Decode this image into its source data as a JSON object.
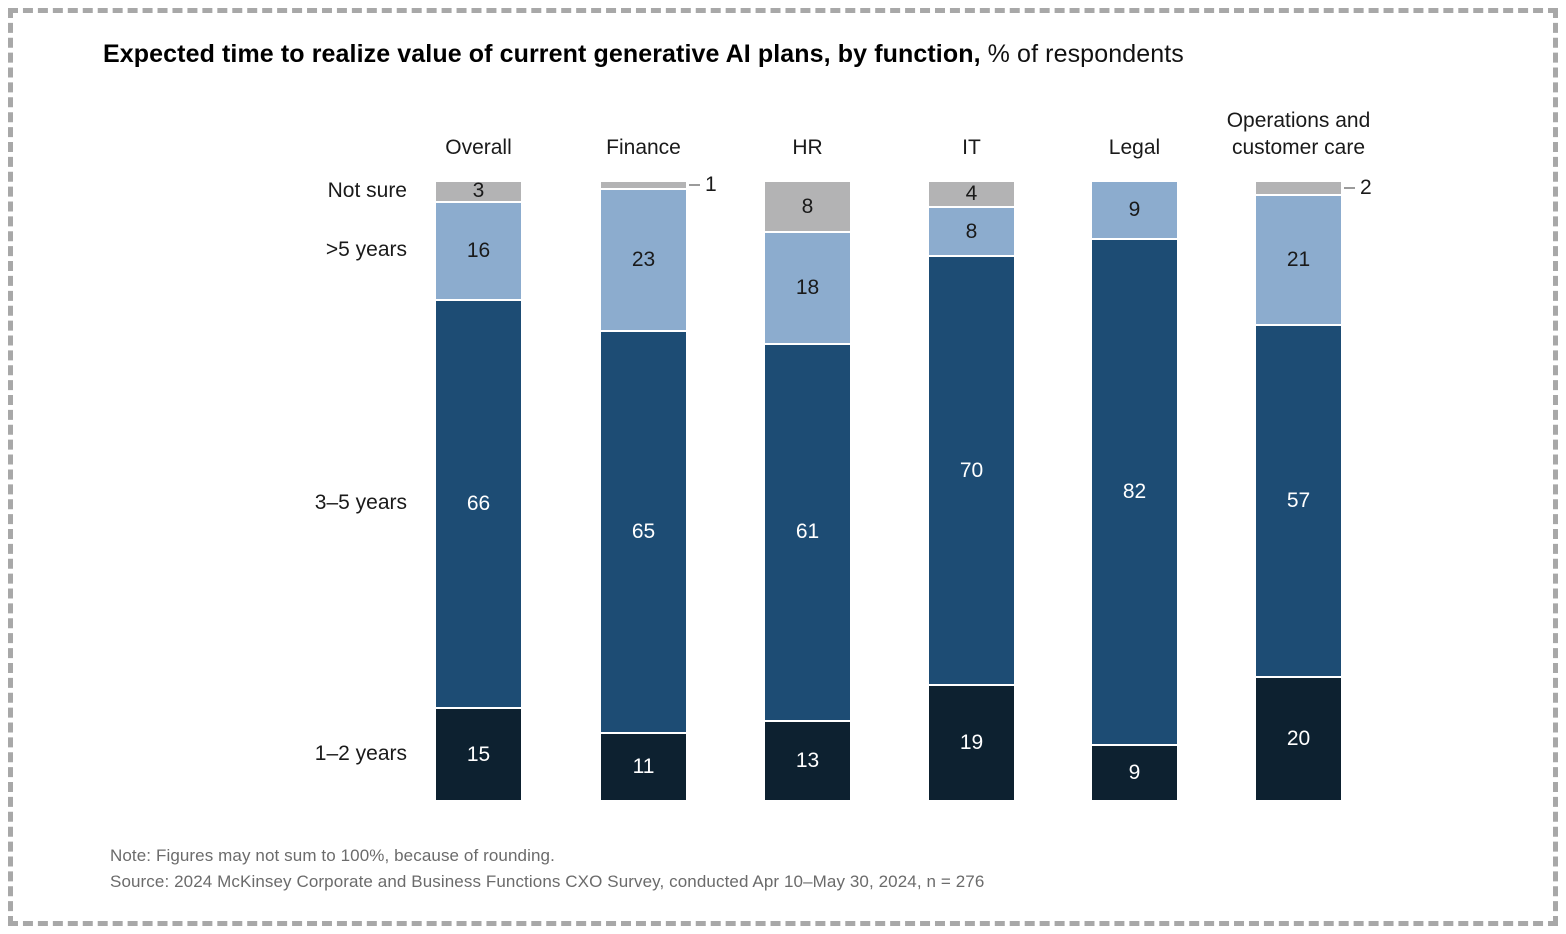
{
  "title": {
    "bold": "Expected time to realize value of current generative AI plans, by function,",
    "regular": " % of respondents"
  },
  "chart_data": {
    "type": "bar",
    "stacked": true,
    "title": "Expected time to realize value of current generative AI plans, by function, % of respondents",
    "categories": [
      "Overall",
      "Finance",
      "HR",
      "IT",
      "Legal",
      "Operations and customer care"
    ],
    "row_labels": [
      "Not sure",
      ">5 years",
      "3–5 years",
      "1–2 years"
    ],
    "series": [
      {
        "name": "Not sure",
        "color": "#b3b3b4",
        "label_color": "#1a1a1a",
        "values": [
          3,
          1,
          8,
          4,
          0,
          2
        ],
        "label_outside": [
          false,
          true,
          false,
          false,
          false,
          true
        ]
      },
      {
        "name": ">5 years",
        "color": "#8cacce",
        "label_color": "#1a1a1a",
        "values": [
          16,
          23,
          18,
          8,
          9,
          21
        ],
        "label_outside": [
          false,
          false,
          false,
          false,
          false,
          false
        ]
      },
      {
        "name": "3–5 years",
        "color": "#1d4c74",
        "label_color": "#ffffff",
        "values": [
          66,
          65,
          61,
          70,
          82,
          57
        ],
        "label_outside": [
          false,
          false,
          false,
          false,
          false,
          false
        ]
      },
      {
        "name": "1–2 years",
        "color": "#0d2130",
        "label_color": "#ffffff",
        "values": [
          15,
          11,
          13,
          19,
          9,
          20
        ],
        "label_outside": [
          false,
          false,
          false,
          false,
          false,
          false
        ]
      }
    ],
    "ylim": [
      0,
      100
    ],
    "grid": false,
    "legend_position": "left-row-labels",
    "note": "Note: Figures may not sum to 100%, because of rounding.",
    "source": "Source: 2024 McKinsey Corporate and Business Functions CXO Survey, conducted Apr 10–May 30, 2024, n = 276"
  }
}
